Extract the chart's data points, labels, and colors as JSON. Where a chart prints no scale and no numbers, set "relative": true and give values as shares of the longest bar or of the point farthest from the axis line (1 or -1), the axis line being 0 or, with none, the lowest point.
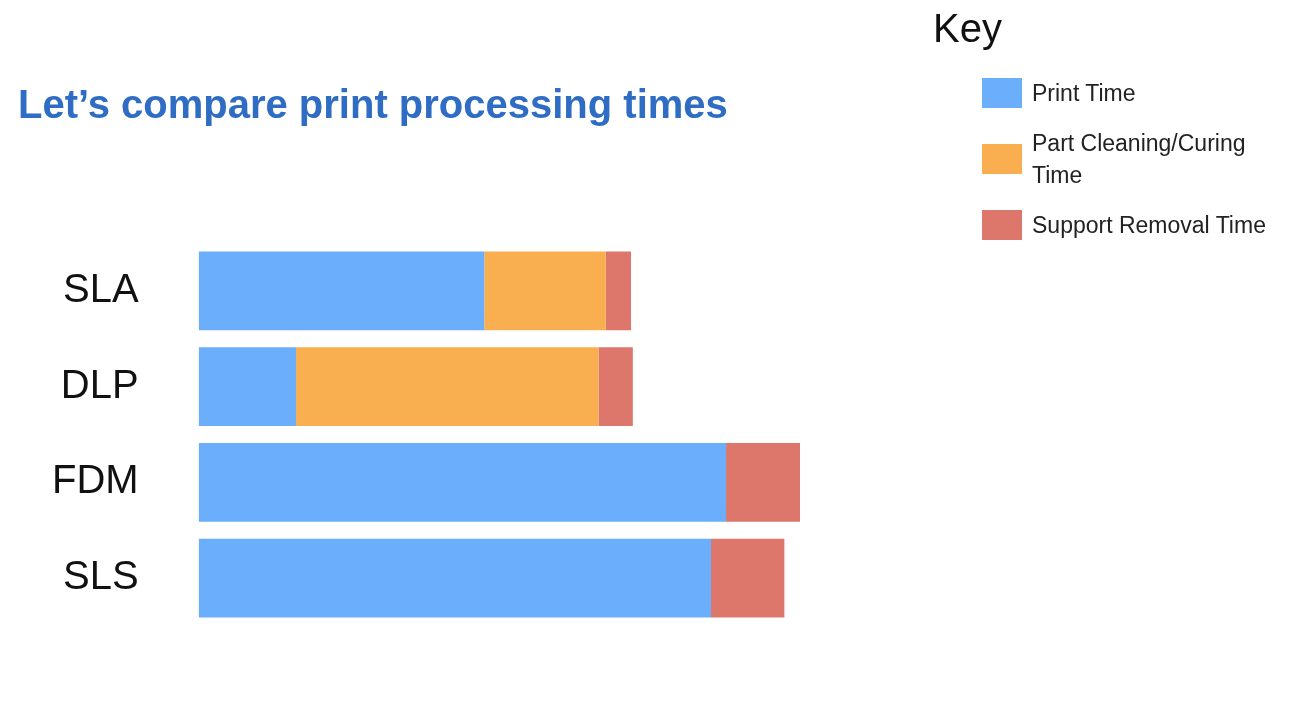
{
  "chart_data": {
    "type": "bar",
    "orientation": "horizontal",
    "stacked": true,
    "relative": true,
    "title": "Let’s compare print processing times",
    "legend_title": "Key",
    "legend": "top right",
    "categories": [
      "SLA",
      "DLP",
      "FDM",
      "SLS"
    ],
    "series": [
      {
        "name": "Print Time",
        "color": "#6aaefc",
        "values": [
          0.475,
          0.162,
          0.877,
          0.852
        ]
      },
      {
        "name": "Part Cleaning/Curing Time",
        "color": "#f9ae4f",
        "values": [
          0.202,
          0.503,
          null,
          null
        ]
      },
      {
        "name": "Support Removal Time",
        "color": "#dd766b",
        "values": [
          0.042,
          0.057,
          0.123,
          0.122
        ]
      }
    ]
  }
}
